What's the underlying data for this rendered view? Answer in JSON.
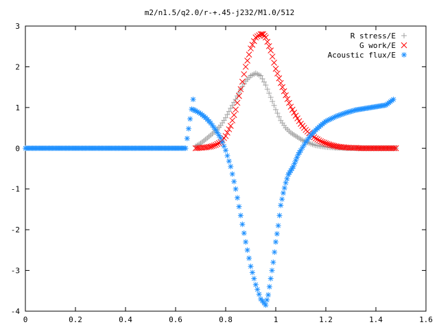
{
  "chart_data": {
    "type": "scatter",
    "title": "m2/n1.5/q2.0/r-+.45-j232/M1.0/512",
    "xlabel": "",
    "ylabel": "",
    "xlim": [
      0,
      1.6
    ],
    "ylim": [
      -4,
      3
    ],
    "xticks": [
      "0",
      "0.2",
      "0.4",
      "0.6",
      "0.8",
      "1",
      "1.2",
      "1.4",
      "1.6"
    ],
    "yticks": [
      "3",
      "2",
      "1",
      "0",
      "-1",
      "-2",
      "-3",
      "-4"
    ],
    "grid": false,
    "legend_position": "top-right",
    "series": [
      {
        "name": "R stress/E",
        "marker": "plus",
        "color": "#a0a0a0",
        "x": [
          0.68,
          0.7,
          0.72,
          0.74,
          0.76,
          0.78,
          0.8,
          0.82,
          0.84,
          0.86,
          0.88,
          0.9,
          0.92,
          0.94,
          0.96,
          0.98,
          1.0,
          1.02,
          1.04,
          1.06,
          1.08,
          1.1,
          1.12,
          1.14,
          1.16,
          1.18,
          1.2,
          1.22,
          1.24,
          1.26,
          1.28,
          1.3,
          1.32,
          1.34,
          1.36,
          1.38,
          1.4,
          1.42,
          1.44,
          1.46,
          1.48
        ],
        "y": [
          0.05,
          0.12,
          0.22,
          0.32,
          0.43,
          0.56,
          0.75,
          0.98,
          1.2,
          1.45,
          1.65,
          1.78,
          1.84,
          1.78,
          1.55,
          1.25,
          0.95,
          0.68,
          0.5,
          0.38,
          0.3,
          0.22,
          0.16,
          0.11,
          0.07,
          0.05,
          0.03,
          0.02,
          0.01,
          0.01,
          0.0,
          0.0,
          0.0,
          0.0,
          0.0,
          0.0,
          0.0,
          0.0,
          0.0,
          0.0,
          0.0
        ]
      },
      {
        "name": "G work/E",
        "marker": "cross",
        "color": "#ff0000",
        "x": [
          0.68,
          0.7,
          0.72,
          0.74,
          0.76,
          0.78,
          0.8,
          0.82,
          0.84,
          0.86,
          0.88,
          0.9,
          0.92,
          0.94,
          0.95,
          0.96,
          0.98,
          1.0,
          1.02,
          1.04,
          1.06,
          1.08,
          1.1,
          1.12,
          1.14,
          1.16,
          1.18,
          1.2,
          1.22,
          1.24,
          1.26,
          1.28,
          1.3,
          1.32,
          1.34,
          1.36,
          1.38,
          1.4,
          1.42,
          1.44,
          1.46,
          1.48
        ],
        "y": [
          0.0,
          0.01,
          0.02,
          0.04,
          0.08,
          0.15,
          0.3,
          0.55,
          0.95,
          1.45,
          2.0,
          2.45,
          2.72,
          2.8,
          2.8,
          2.72,
          2.4,
          1.95,
          1.6,
          1.3,
          1.02,
          0.8,
          0.6,
          0.45,
          0.33,
          0.24,
          0.17,
          0.12,
          0.08,
          0.05,
          0.03,
          0.02,
          0.01,
          0.01,
          0.0,
          0.0,
          0.0,
          0.0,
          0.0,
          0.0,
          0.0,
          0.0
        ]
      },
      {
        "name": "Acoustic flux/E",
        "marker": "star",
        "color": "#1e90ff",
        "x": [
          0.0,
          0.04,
          0.08,
          0.12,
          0.16,
          0.2,
          0.24,
          0.28,
          0.32,
          0.36,
          0.4,
          0.44,
          0.48,
          0.52,
          0.56,
          0.6,
          0.64,
          0.67,
          0.67,
          0.68,
          0.7,
          0.72,
          0.74,
          0.76,
          0.78,
          0.8,
          0.82,
          0.84,
          0.86,
          0.88,
          0.9,
          0.92,
          0.94,
          0.96,
          0.97,
          0.98,
          0.99,
          1.0,
          1.01,
          1.02,
          1.03,
          1.04,
          1.05,
          1.06,
          1.07,
          1.08,
          1.09,
          1.1,
          1.12,
          1.14,
          1.16,
          1.18,
          1.2,
          1.24,
          1.28,
          1.32,
          1.36,
          1.4,
          1.44,
          1.47
        ],
        "y": [
          0,
          0,
          0,
          0,
          0,
          0,
          0,
          0,
          0,
          0,
          0,
          0,
          0,
          0,
          0,
          0,
          0,
          1.2,
          0.95,
          0.92,
          0.85,
          0.75,
          0.62,
          0.45,
          0.25,
          -0.05,
          -0.45,
          -1.0,
          -1.65,
          -2.3,
          -2.9,
          -3.35,
          -3.7,
          -3.85,
          -3.6,
          -3.2,
          -2.8,
          -2.3,
          -1.9,
          -1.4,
          -1.1,
          -0.85,
          -0.65,
          -0.55,
          -0.45,
          -0.3,
          -0.15,
          -0.05,
          0.15,
          0.32,
          0.45,
          0.56,
          0.66,
          0.78,
          0.87,
          0.94,
          0.98,
          1.02,
          1.06,
          1.2
        ]
      }
    ]
  }
}
